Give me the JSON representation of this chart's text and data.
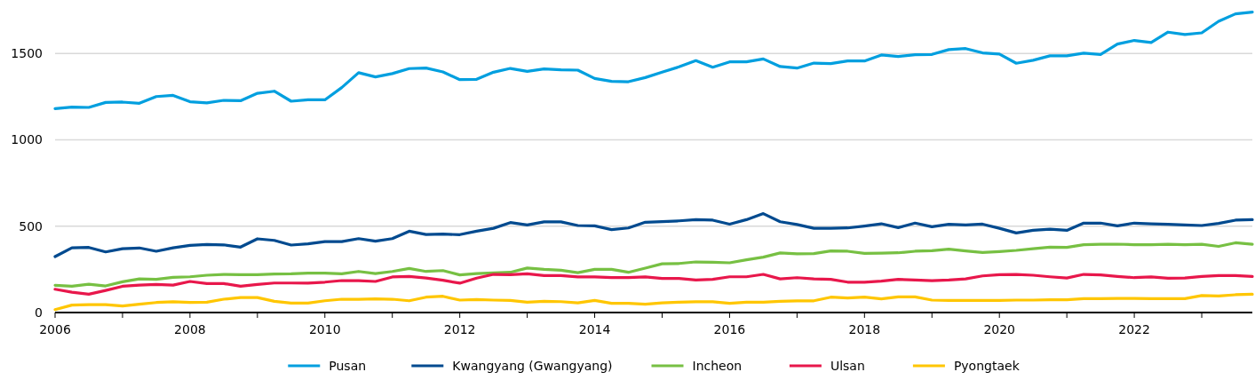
{
  "chart_data": {
    "type": "line",
    "x": [
      2006,
      2006.25,
      2006.5,
      2006.75,
      2007,
      2007.25,
      2007.5,
      2007.75,
      2008,
      2008.25,
      2008.5,
      2008.75,
      2009,
      2009.25,
      2009.5,
      2009.75,
      2010,
      2010.25,
      2010.5,
      2010.75,
      2011,
      2011.25,
      2011.5,
      2011.75,
      2012,
      2012.25,
      2012.5,
      2012.75,
      2013,
      2013.25,
      2013.5,
      2013.75,
      2014,
      2014.25,
      2014.5,
      2014.75,
      2015,
      2015.25,
      2015.5,
      2015.75,
      2016,
      2016.25,
      2016.5,
      2016.75,
      2017,
      2017.25,
      2017.5,
      2017.75,
      2018,
      2018.25,
      2018.5,
      2018.75,
      2019,
      2019.25,
      2019.5,
      2019.75,
      2020,
      2020.25,
      2020.5,
      2020.75,
      2021,
      2021.25,
      2021.5,
      2021.75,
      2022,
      2022.25,
      2022.5,
      2022.75,
      2023,
      2023.25,
      2023.5,
      2023.75
    ],
    "series": [
      {
        "name": "Pusan",
        "color": "#009fdf",
        "values": [
          1181,
          1190,
          1188,
          1217,
          1219,
          1212,
          1251,
          1258,
          1221,
          1214,
          1229,
          1227,
          1270,
          1282,
          1224,
          1232,
          1232,
          1303,
          1389,
          1365,
          1384,
          1413,
          1416,
          1394,
          1349,
          1351,
          1392,
          1414,
          1397,
          1411,
          1406,
          1404,
          1356,
          1339,
          1337,
          1361,
          1392,
          1423,
          1459,
          1421,
          1452,
          1452,
          1469,
          1425,
          1416,
          1445,
          1442,
          1457,
          1457,
          1492,
          1483,
          1493,
          1495,
          1523,
          1529,
          1504,
          1497,
          1444,
          1461,
          1487,
          1487,
          1502,
          1495,
          1555,
          1576,
          1564,
          1624,
          1610,
          1620,
          1687,
          1730,
          1740
        ]
      },
      {
        "name": "Kwangyang (Gwangyang)",
        "color": "#004a8f",
        "values": [
          324,
          375,
          377,
          351,
          370,
          374,
          355,
          375,
          389,
          394,
          392,
          379,
          427,
          418,
          391,
          398,
          411,
          411,
          428,
          413,
          428,
          471,
          452,
          454,
          451,
          471,
          488,
          521,
          507,
          525,
          525,
          504,
          502,
          480,
          490,
          523,
          526,
          531,
          538,
          535,
          512,
          538,
          573,
          526,
          510,
          488,
          488,
          490,
          501,
          514,
          492,
          518,
          497,
          511,
          507,
          512,
          488,
          461,
          476,
          483,
          476,
          518,
          518,
          502,
          518,
          514,
          511,
          507,
          504,
          516,
          535,
          538
        ]
      },
      {
        "name": "Incheon",
        "color": "#77c043",
        "values": [
          158,
          152,
          164,
          154,
          178,
          195,
          192,
          204,
          207,
          216,
          221,
          219,
          219,
          223,
          224,
          228,
          228,
          224,
          238,
          226,
          238,
          255,
          238,
          243,
          218,
          226,
          230,
          233,
          258,
          250,
          245,
          231,
          250,
          250,
          233,
          257,
          282,
          284,
          293,
          291,
          288,
          305,
          321,
          345,
          340,
          341,
          357,
          355,
          343,
          344,
          346,
          355,
          358,
          367,
          357,
          348,
          353,
          360,
          370,
          379,
          377,
          393,
          395,
          396,
          393,
          393,
          395,
          393,
          395,
          383,
          404,
          395
        ]
      },
      {
        "name": "Ulsan",
        "color": "#e8174b",
        "values": [
          135,
          118,
          106,
          128,
          152,
          159,
          163,
          159,
          180,
          168,
          168,
          152,
          163,
          171,
          171,
          170,
          176,
          185,
          185,
          180,
          206,
          209,
          200,
          187,
          170,
          199,
          221,
          219,
          224,
          214,
          214,
          206,
          206,
          202,
          202,
          206,
          197,
          197,
          188,
          192,
          207,
          207,
          221,
          195,
          202,
          195,
          192,
          176,
          176,
          182,
          192,
          188,
          185,
          188,
          195,
          212,
          219,
          221,
          216,
          207,
          200,
          221,
          218,
          209,
          202,
          206,
          199,
          200,
          209,
          214,
          214,
          209
        ]
      },
      {
        "name": "Pyongtaek",
        "color": "#ffc600",
        "values": [
          17,
          43,
          46,
          46,
          38,
          48,
          58,
          62,
          58,
          60,
          77,
          87,
          87,
          65,
          55,
          55,
          68,
          77,
          77,
          79,
          77,
          68,
          89,
          94,
          72,
          75,
          72,
          70,
          60,
          65,
          63,
          56,
          70,
          53,
          53,
          48,
          56,
          60,
          62,
          62,
          53,
          60,
          60,
          65,
          68,
          68,
          89,
          84,
          89,
          79,
          91,
          91,
          72,
          70,
          70,
          70,
          70,
          72,
          72,
          74,
          74,
          80,
          80,
          82,
          82,
          80,
          80,
          80,
          98,
          96,
          103,
          106
        ]
      }
    ],
    "xlim": [
      2006,
      2023.75
    ],
    "xticks": [
      2006,
      {
        "value": 2007,
        "label": null
      },
      2008,
      {
        "value": 2009,
        "label": null
      },
      2010,
      {
        "value": 2011,
        "label": null
      },
      2012,
      {
        "value": 2013,
        "label": null
      },
      2014,
      {
        "value": 2015,
        "label": null
      },
      2016,
      {
        "value": 2017,
        "label": null
      },
      2018,
      {
        "value": 2019,
        "label": null
      },
      2020,
      {
        "value": 2021,
        "label": null
      },
      2022,
      {
        "value": 2023,
        "label": null
      }
    ],
    "ylim": [
      0,
      1800
    ],
    "yticks": [
      0,
      500,
      1000,
      1500
    ],
    "grid": "y",
    "legend": "bottom",
    "marker": "none",
    "line_style": "solid"
  }
}
